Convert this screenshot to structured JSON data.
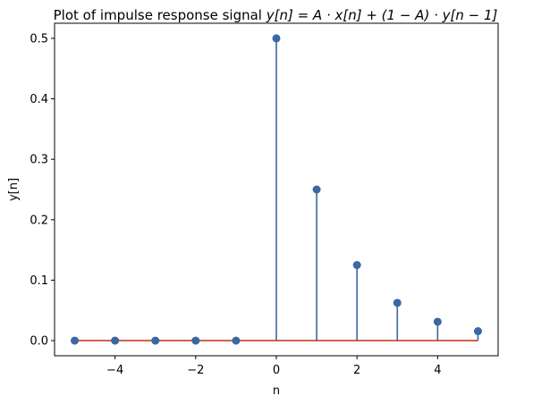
{
  "chart_data": {
    "type": "stem",
    "title": "Plot of impulse response signal y[n] = A·x[n] + (1 − A)·y[n − 1]",
    "title_parts": {
      "prefix": "Plot of impulse response signal ",
      "formula": "y[n] = A · x[n] + (1 − A) · y[n − 1]"
    },
    "xlabel": "n",
    "ylabel": "y[n]",
    "x": [
      -5,
      -4,
      -3,
      -2,
      -1,
      0,
      1,
      2,
      3,
      4,
      5
    ],
    "y": [
      0,
      0,
      0,
      0,
      0,
      0.5,
      0.25,
      0.125,
      0.0625,
      0.03125,
      0.015625
    ],
    "xlim": [
      -5.5,
      5.5
    ],
    "ylim": [
      -0.025,
      0.525
    ],
    "xticks": [
      -4,
      -2,
      0,
      2,
      4
    ],
    "xtick_labels": [
      "−4",
      "−2",
      "0",
      "2",
      "4"
    ],
    "yticks": [
      0.0,
      0.1,
      0.2,
      0.3,
      0.4,
      0.5
    ],
    "ytick_labels": [
      "0.0",
      "0.1",
      "0.2",
      "0.3",
      "0.4",
      "0.5"
    ],
    "grid": false,
    "legend": "none",
    "colors": {
      "stem": "#3b67a3",
      "marker": "#3b67a3",
      "baseline": "#c0412f",
      "axes": "#000000",
      "background": "#ffffff"
    }
  }
}
